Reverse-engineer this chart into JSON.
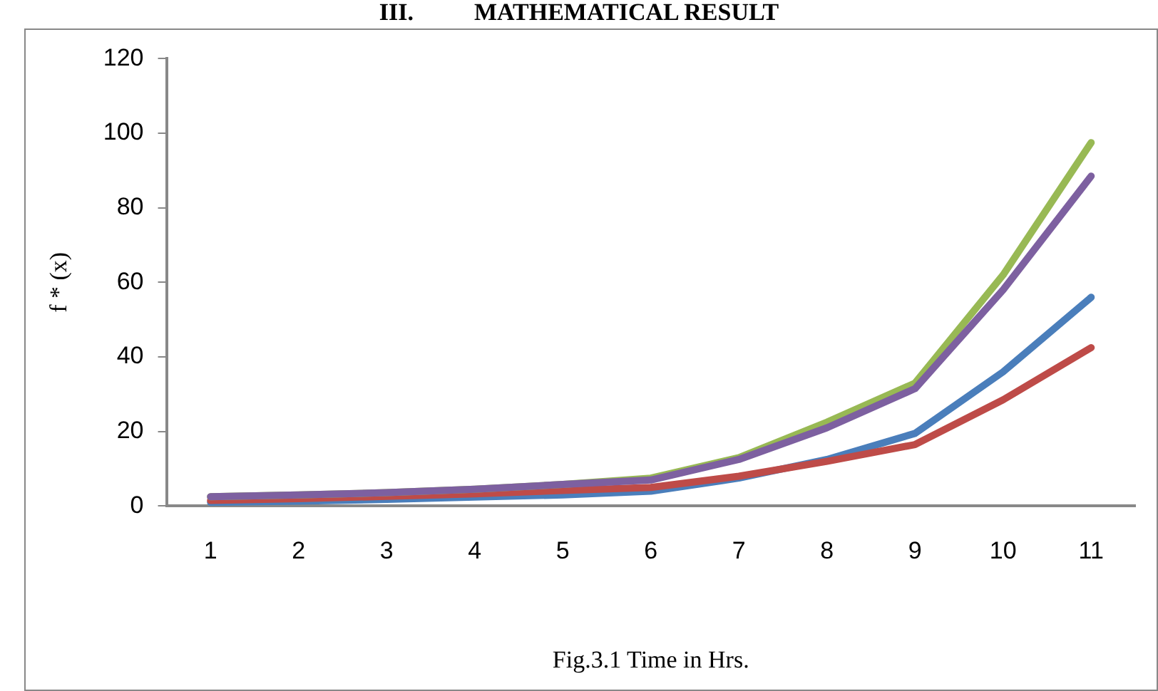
{
  "chart_data": {
    "type": "line",
    "title": "III.          MATHEMATICAL RESULT",
    "xlabel": "Fig.3.1 Time in Hrs.",
    "ylabel": "f * (x)",
    "categories": [
      "1",
      "2",
      "3",
      "4",
      "5",
      "6",
      "7",
      "8",
      "9",
      "10",
      "11"
    ],
    "series": [
      {
        "color": "#4a7ebb",
        "values": [
          1,
          1.3,
          1.8,
          2.4,
          3,
          4,
          7.5,
          12.5,
          19.5,
          36,
          56
        ]
      },
      {
        "color": "#be4b48",
        "values": [
          1.5,
          2,
          2.6,
          3.3,
          4.2,
          5,
          8,
          12,
          16.5,
          28.5,
          42.5
        ]
      },
      {
        "color": "#98b954",
        "values": [
          2.5,
          3,
          3.6,
          4.5,
          5.8,
          7.5,
          13,
          22.5,
          33,
          62,
          97.5
        ]
      },
      {
        "color": "#7d60a0",
        "values": [
          2.5,
          3,
          3.6,
          4.5,
          5.8,
          7,
          12.5,
          21,
          31.5,
          58,
          88.5
        ]
      }
    ],
    "ylim": [
      0,
      120
    ],
    "yticks": [
      0,
      20,
      40,
      60,
      80,
      100,
      120
    ],
    "grid": false,
    "legend": false,
    "marker": "none",
    "line_style": "solid"
  }
}
